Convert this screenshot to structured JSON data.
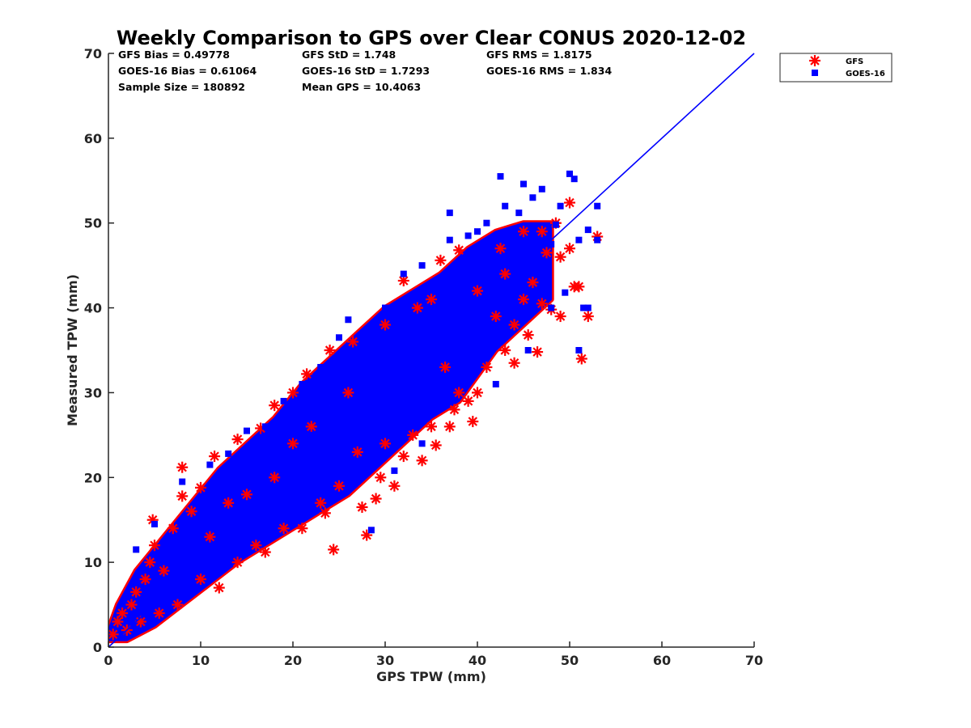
{
  "chart_data": {
    "type": "scatter",
    "title": "Weekly Comparison to GPS over Clear CONUS 2020-12-02",
    "xlabel": "GPS TPW (mm)",
    "ylabel": "Measured TPW (mm)",
    "xlim": [
      0,
      70
    ],
    "ylim": [
      0,
      70
    ],
    "x_ticks": [
      "0",
      "10",
      "20",
      "30",
      "40",
      "50",
      "60",
      "70"
    ],
    "y_ticks": [
      "0",
      "10",
      "20",
      "30",
      "40",
      "50",
      "60",
      "70"
    ],
    "grid": false,
    "legend_position": "outside-top-right",
    "stats": {
      "gfs_bias": "GFS Bias = 0.49778",
      "goes_bias": "GOES-16 Bias = 0.61064",
      "sample_size": "Sample Size = 180892",
      "gfs_std": "GFS StD = 1.748",
      "goes_std": "GOES-16 StD = 1.7293",
      "mean_gps": "Mean GPS = 10.4063",
      "gfs_rms": "GFS RMS = 1.8175",
      "goes_rms": "GOES-16 RMS = 1.834"
    },
    "reference_line": {
      "x": [
        0,
        70
      ],
      "y": [
        0,
        70
      ],
      "color": "#0000ff"
    },
    "series": [
      {
        "name": "GFS",
        "marker": "asterisk",
        "color": "#ff0000",
        "points": [
          [
            0.5,
            1.5
          ],
          [
            1,
            3
          ],
          [
            1.5,
            4
          ],
          [
            2,
            2
          ],
          [
            2.5,
            5
          ],
          [
            3,
            6.5
          ],
          [
            3.5,
            3
          ],
          [
            4,
            8
          ],
          [
            4.5,
            10
          ],
          [
            4.8,
            15
          ],
          [
            5,
            12
          ],
          [
            5.5,
            4
          ],
          [
            6,
            9
          ],
          [
            7,
            14
          ],
          [
            7.5,
            5
          ],
          [
            8,
            21.2
          ],
          [
            8,
            17.8
          ],
          [
            9,
            16
          ],
          [
            10,
            18.8
          ],
          [
            10,
            8
          ],
          [
            11,
            13
          ],
          [
            11.5,
            22.5
          ],
          [
            12,
            7
          ],
          [
            13,
            17
          ],
          [
            14,
            24.5
          ],
          [
            14,
            10
          ],
          [
            15,
            18
          ],
          [
            16,
            12
          ],
          [
            16.5,
            25.8
          ],
          [
            17,
            11.2
          ],
          [
            18,
            28.5
          ],
          [
            18,
            20
          ],
          [
            19,
            14
          ],
          [
            20,
            30
          ],
          [
            20,
            24
          ],
          [
            21,
            14
          ],
          [
            21.5,
            32.2
          ],
          [
            22,
            26
          ],
          [
            23,
            17
          ],
          [
            23.5,
            15.8
          ],
          [
            24,
            35
          ],
          [
            24.4,
            11.5
          ],
          [
            25,
            19
          ],
          [
            26,
            30
          ],
          [
            26.5,
            36
          ],
          [
            27,
            23
          ],
          [
            27.5,
            16.5
          ],
          [
            28,
            13.2
          ],
          [
            29,
            17.5
          ],
          [
            29.5,
            20
          ],
          [
            30,
            38
          ],
          [
            30,
            24
          ],
          [
            31,
            19
          ],
          [
            32,
            43.2
          ],
          [
            32,
            22.5
          ],
          [
            33,
            25
          ],
          [
            33.5,
            40
          ],
          [
            34,
            22
          ],
          [
            35,
            26
          ],
          [
            35,
            41
          ],
          [
            35.5,
            23.8
          ],
          [
            36,
            45.6
          ],
          [
            36.5,
            33
          ],
          [
            37,
            26
          ],
          [
            37.5,
            28
          ],
          [
            38,
            46.8
          ],
          [
            38,
            30
          ],
          [
            39,
            29
          ],
          [
            39.5,
            26.6
          ],
          [
            40,
            42
          ],
          [
            40,
            30
          ],
          [
            41,
            33
          ],
          [
            42,
            39
          ],
          [
            42.5,
            47
          ],
          [
            43,
            44
          ],
          [
            43,
            35
          ],
          [
            44,
            38
          ],
          [
            44,
            33.5
          ],
          [
            45,
            49
          ],
          [
            45,
            41
          ],
          [
            45.5,
            36.8
          ],
          [
            46,
            43
          ],
          [
            46.5,
            34.8
          ],
          [
            47,
            49
          ],
          [
            47,
            40.5
          ],
          [
            47.5,
            46.5
          ],
          [
            48,
            39.8
          ],
          [
            48.5,
            50
          ],
          [
            49,
            46
          ],
          [
            49,
            39
          ],
          [
            50,
            52.4
          ],
          [
            50,
            47
          ],
          [
            50.5,
            42.5
          ],
          [
            51,
            42.5
          ],
          [
            51.3,
            34
          ],
          [
            52,
            39
          ],
          [
            53,
            48.4
          ]
        ]
      },
      {
        "name": "GOES-16",
        "marker": "square",
        "color": "#0000ff",
        "points": [
          [
            3,
            11.5
          ],
          [
            5,
            14.5
          ],
          [
            6.5,
            12
          ],
          [
            8,
            19.5
          ],
          [
            9.5,
            15
          ],
          [
            11,
            21.5
          ],
          [
            12,
            15
          ],
          [
            13,
            22.8
          ],
          [
            14,
            17.8
          ],
          [
            15,
            25.5
          ],
          [
            16,
            20
          ],
          [
            17,
            26
          ],
          [
            18,
            24
          ],
          [
            19,
            29
          ],
          [
            20,
            27
          ],
          [
            21,
            31
          ],
          [
            22,
            25
          ],
          [
            23,
            33
          ],
          [
            24,
            28
          ],
          [
            25,
            36.5
          ],
          [
            25,
            30
          ],
          [
            26,
            38.6
          ],
          [
            27,
            33
          ],
          [
            28,
            37
          ],
          [
            28.5,
            13.8
          ],
          [
            29,
            35
          ],
          [
            30,
            40
          ],
          [
            31,
            35
          ],
          [
            31,
            20.8
          ],
          [
            32,
            44
          ],
          [
            33,
            38
          ],
          [
            34,
            45
          ],
          [
            34,
            24
          ],
          [
            35,
            30
          ],
          [
            35.5,
            39.5
          ],
          [
            36,
            42
          ],
          [
            37,
            51.2
          ],
          [
            37,
            48
          ],
          [
            38,
            45
          ],
          [
            38.5,
            32
          ],
          [
            39,
            48.5
          ],
          [
            40,
            40.6
          ],
          [
            40,
            49
          ],
          [
            41,
            50
          ],
          [
            41.5,
            43
          ],
          [
            42,
            31
          ],
          [
            42.5,
            55.5
          ],
          [
            43,
            52
          ],
          [
            43,
            48
          ],
          [
            43.5,
            40.5
          ],
          [
            44,
            44
          ],
          [
            44.5,
            51.2
          ],
          [
            45,
            54.6
          ],
          [
            45,
            47
          ],
          [
            45.5,
            35
          ],
          [
            46,
            53
          ],
          [
            46.5,
            42
          ],
          [
            47,
            54
          ],
          [
            47.5,
            48
          ],
          [
            48,
            40
          ],
          [
            48,
            47.5
          ],
          [
            48.5,
            49.8
          ],
          [
            49,
            52
          ],
          [
            49.5,
            41.8
          ],
          [
            50,
            55.8
          ],
          [
            50.5,
            55.2
          ],
          [
            51,
            48
          ],
          [
            51,
            35
          ],
          [
            51.5,
            40
          ],
          [
            52,
            49.2
          ],
          [
            52,
            40
          ],
          [
            53,
            52
          ],
          [
            53,
            48
          ]
        ]
      }
    ]
  }
}
